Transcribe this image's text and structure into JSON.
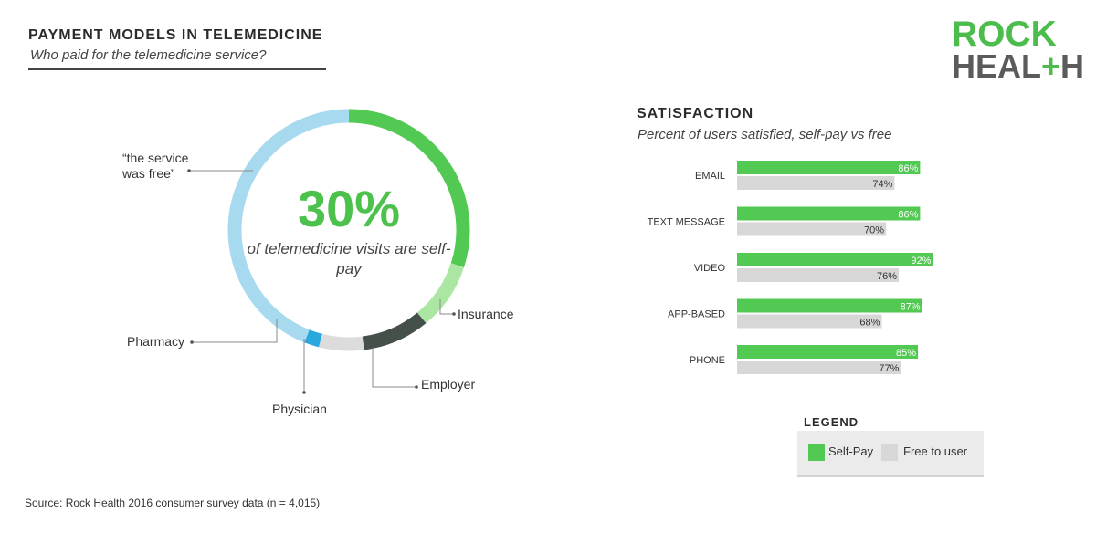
{
  "left_panel": {
    "title": "PAYMENT MODELS IN TELEMEDICINE",
    "subtitle": "Who paid for the telemedicine service?",
    "center_value": "30%",
    "center_text": "of telemedicine visits are self-pay",
    "callouts": {
      "free": "“the service was free”",
      "insurance": "Insurance",
      "employer": "Employer",
      "physician": "Physician",
      "pharmacy": "Pharmacy"
    }
  },
  "logo": {
    "line1": "ROCK",
    "line2_a": "HEAL",
    "line2_plus": "+",
    "line2_b": "H"
  },
  "right_panel": {
    "title": "SATISFACTION",
    "subtitle": "Percent of users satisfied, self-pay vs free"
  },
  "legend": {
    "title": "LEGEND",
    "self_pay": "Self-Pay",
    "free": "Free to user"
  },
  "source": "Source: Rock Health 2016 consumer survey data (n = 4,015)",
  "colors": {
    "self_pay": "#52c952",
    "free": "#d7d7d7",
    "insurance": "#abe6a3",
    "employer": "#46504a",
    "physician": "#dcdcdc",
    "pharmacy": "#29a8df",
    "service_free": "#a7d9ef"
  },
  "chart_data": [
    {
      "type": "pie",
      "title": "PAYMENT MODELS IN TELEMEDICINE",
      "subtitle": "Who paid for the telemedicine service?",
      "slices": [
        {
          "label": "Self-pay",
          "value": 30,
          "color": "#52c952"
        },
        {
          "label": "Insurance",
          "value": 9,
          "color": "#abe6a3"
        },
        {
          "label": "Employer",
          "value": 9,
          "color": "#46504a"
        },
        {
          "label": "Physician",
          "value": 6,
          "color": "#dcdcdc"
        },
        {
          "label": "Pharmacy",
          "value": 2,
          "color": "#29a8df"
        },
        {
          "label": "“the service was free”",
          "value": 44,
          "color": "#a7d9ef"
        }
      ]
    },
    {
      "type": "bar",
      "orientation": "horizontal",
      "title": "SATISFACTION",
      "subtitle": "Percent of users satisfied, self-pay vs free",
      "categories": [
        "EMAIL",
        "TEXT MESSAGE",
        "VIDEO",
        "APP-BASED",
        "PHONE"
      ],
      "series": [
        {
          "name": "Self-Pay",
          "values": [
            86,
            86,
            92,
            87,
            85
          ],
          "color": "#52c952"
        },
        {
          "name": "Free to user",
          "values": [
            74,
            70,
            76,
            68,
            77
          ],
          "color": "#d7d7d7"
        }
      ],
      "value_suffix": "%",
      "xlim": [
        0,
        100
      ],
      "legend_position": "bottom-right"
    }
  ]
}
